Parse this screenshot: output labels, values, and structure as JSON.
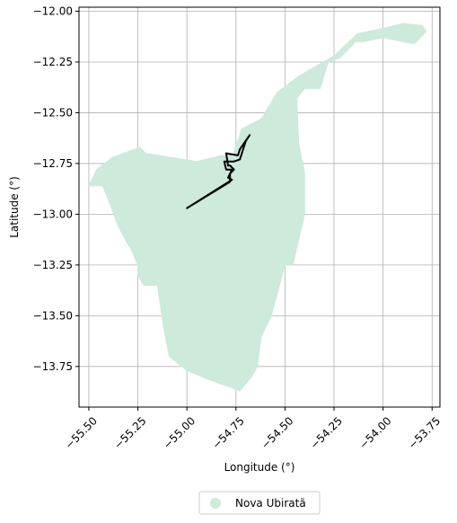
{
  "chart_data": {
    "type": "map",
    "title": "",
    "xlabel": "Longitude (°)",
    "ylabel": "Latitude (°)",
    "xlim": [
      -55.55,
      -53.71
    ],
    "ylim": [
      -13.95,
      -11.98
    ],
    "xticks": [
      -55.5,
      -55.25,
      -55.0,
      -54.75,
      -54.5,
      -54.25,
      -54.0,
      -53.75
    ],
    "xtick_labels": [
      "−55.50",
      "−55.25",
      "−55.00",
      "−54.75",
      "−54.50",
      "−54.25",
      "−54.00",
      "−53.75"
    ],
    "yticks": [
      -12.0,
      -12.25,
      -12.5,
      -12.75,
      -13.0,
      -13.25,
      -13.5,
      -13.75
    ],
    "ytick_labels": [
      "−12.00",
      "−12.25",
      "−12.50",
      "−12.75",
      "−13.00",
      "−13.25",
      "−13.50",
      "−13.75"
    ],
    "grid": true,
    "legend": {
      "placement": "bottom-center",
      "entries": [
        {
          "label": "Nova Ubiratã",
          "color": "#cdeadb"
        }
      ]
    },
    "region": {
      "name": "Nova Ubiratã",
      "color": "#cdeadb",
      "outline_lonlat": [
        [
          -53.8,
          -12.07
        ],
        [
          -53.78,
          -12.1
        ],
        [
          -53.84,
          -12.16
        ],
        [
          -54.0,
          -12.13
        ],
        [
          -54.1,
          -12.15
        ],
        [
          -54.14,
          -12.15
        ],
        [
          -54.22,
          -12.23
        ],
        [
          -54.28,
          -12.25
        ],
        [
          -54.32,
          -12.38
        ],
        [
          -54.4,
          -12.38
        ],
        [
          -54.44,
          -12.43
        ],
        [
          -54.43,
          -12.65
        ],
        [
          -54.4,
          -12.8
        ],
        [
          -54.4,
          -13.0
        ],
        [
          -54.46,
          -13.25
        ],
        [
          -54.5,
          -13.25
        ],
        [
          -54.57,
          -13.5
        ],
        [
          -54.62,
          -13.6
        ],
        [
          -54.63,
          -13.66
        ],
        [
          -54.64,
          -13.75
        ],
        [
          -54.67,
          -13.8
        ],
        [
          -54.73,
          -13.87
        ],
        [
          -54.9,
          -13.81
        ],
        [
          -55.0,
          -13.77
        ],
        [
          -55.09,
          -13.7
        ],
        [
          -55.12,
          -13.55
        ],
        [
          -55.15,
          -13.35
        ],
        [
          -55.22,
          -13.35
        ],
        [
          -55.25,
          -13.3
        ],
        [
          -55.25,
          -13.25
        ],
        [
          -55.29,
          -13.16
        ],
        [
          -55.3,
          -13.15
        ],
        [
          -55.35,
          -13.06
        ],
        [
          -55.38,
          -12.98
        ],
        [
          -55.4,
          -12.93
        ],
        [
          -55.43,
          -12.86
        ],
        [
          -55.5,
          -12.86
        ],
        [
          -55.46,
          -12.78
        ],
        [
          -55.38,
          -12.72
        ],
        [
          -55.24,
          -12.67
        ],
        [
          -55.21,
          -12.7
        ],
        [
          -54.95,
          -12.74
        ],
        [
          -54.82,
          -12.71
        ],
        [
          -54.77,
          -12.72
        ],
        [
          -54.72,
          -12.58
        ],
        [
          -54.62,
          -12.53
        ],
        [
          -54.54,
          -12.4
        ],
        [
          -54.43,
          -12.32
        ],
        [
          -54.25,
          -12.22
        ],
        [
          -54.13,
          -12.11
        ],
        [
          -53.98,
          -12.08
        ],
        [
          -53.9,
          -12.06
        ],
        [
          -53.8,
          -12.07
        ]
      ],
      "enclave_outline_lonlat": [
        [
          -55.0,
          -12.97
        ],
        [
          -54.78,
          -12.84
        ],
        [
          -54.78,
          -12.8
        ],
        [
          -54.76,
          -12.78
        ],
        [
          -54.78,
          -12.76
        ],
        [
          -54.79,
          -12.76
        ],
        [
          -54.8,
          -12.7
        ],
        [
          -54.74,
          -12.71
        ],
        [
          -54.73,
          -12.68
        ],
        [
          -54.68,
          -12.61
        ],
        [
          -54.7,
          -12.64
        ],
        [
          -54.73,
          -12.73
        ],
        [
          -54.76,
          -12.74
        ],
        [
          -54.81,
          -12.74
        ],
        [
          -54.8,
          -12.78
        ],
        [
          -54.77,
          -12.78
        ],
        [
          -54.79,
          -12.82
        ],
        [
          -54.77,
          -12.83
        ],
        [
          -55.0,
          -12.97
        ]
      ]
    }
  }
}
